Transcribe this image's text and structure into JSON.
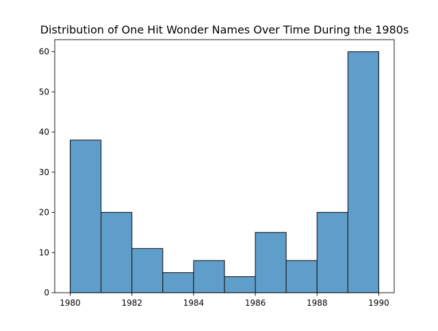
{
  "chart_data": {
    "type": "bar",
    "title": "Distribution of One Hit Wonder Names Over Time During the 1980s",
    "xlabel": "",
    "ylabel": "",
    "bins": [
      {
        "start": 1980,
        "end": 1981,
        "value": 38
      },
      {
        "start": 1981,
        "end": 1982,
        "value": 20
      },
      {
        "start": 1982,
        "end": 1983,
        "value": 11
      },
      {
        "start": 1983,
        "end": 1984,
        "value": 5
      },
      {
        "start": 1984,
        "end": 1985,
        "value": 8
      },
      {
        "start": 1985,
        "end": 1986,
        "value": 4
      },
      {
        "start": 1986,
        "end": 1987,
        "value": 15
      },
      {
        "start": 1987,
        "end": 1988,
        "value": 8
      },
      {
        "start": 1988,
        "end": 1989,
        "value": 20
      },
      {
        "start": 1989,
        "end": 1990,
        "value": 60
      }
    ],
    "xlim": [
      1979.5,
      1990.5
    ],
    "ylim": [
      0,
      63
    ],
    "xticks": [
      "1980",
      "1982",
      "1984",
      "1986",
      "1988",
      "1990"
    ],
    "yticks": [
      "0",
      "10",
      "20",
      "30",
      "40",
      "50",
      "60"
    ],
    "grid": false,
    "bar_color": "#5f9ecb",
    "edge_color": "#1a1a1a"
  }
}
